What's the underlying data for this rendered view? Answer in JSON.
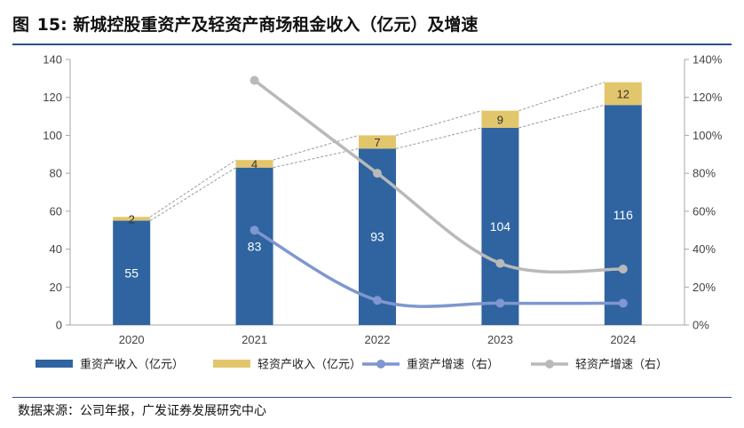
{
  "title": {
    "prefix": "图",
    "number": "15:",
    "text": "新城控股重资产及轻资产商场租金收入（亿元）及增速"
  },
  "source": "数据来源：公司年报，广发证券发展研究中心",
  "colors": {
    "heavy_bar": "#2f64a1",
    "light_bar": "#e2c66c",
    "heavy_line": "#7f97cf",
    "light_line": "#b9b9b9",
    "rule": "#2e4f8f"
  },
  "chart_data": {
    "type": "bar",
    "stacked": true,
    "categories": [
      "2020",
      "2021",
      "2022",
      "2023",
      "2024"
    ],
    "ylim": [
      0,
      140
    ],
    "yticks": [
      "0",
      "20",
      "40",
      "60",
      "80",
      "100",
      "120",
      "140"
    ],
    "y2lim": [
      0,
      140
    ],
    "y2ticks": [
      "0%",
      "20%",
      "40%",
      "60%",
      "80%",
      "100%",
      "120%",
      "140%"
    ],
    "grid": false,
    "legend_position": "bottom",
    "series": [
      {
        "name": "重资产收入（亿元）",
        "type": "bar",
        "axis": "left",
        "values": [
          55,
          83,
          93,
          104,
          116
        ],
        "labels": [
          "55",
          "83",
          "93",
          "104",
          "116"
        ]
      },
      {
        "name": "轻资产收入（亿元）",
        "type": "bar",
        "axis": "left",
        "values": [
          2,
          4,
          7,
          9,
          12
        ],
        "labels": [
          "2",
          "4",
          "7",
          "9",
          "12"
        ]
      },
      {
        "name": "重资产增速（右）",
        "type": "line",
        "axis": "right",
        "values": [
          null,
          50,
          13,
          11.5,
          11.5
        ]
      },
      {
        "name": "轻资产增速（右）",
        "type": "line",
        "axis": "right",
        "values": [
          null,
          129,
          80,
          32.5,
          29.5
        ]
      }
    ]
  }
}
